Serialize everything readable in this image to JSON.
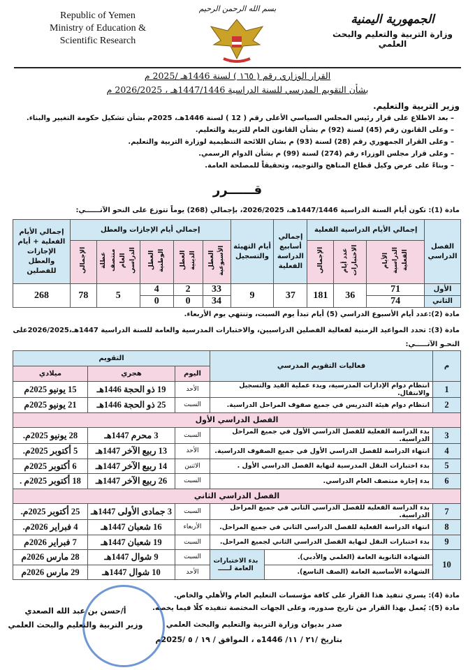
{
  "header": {
    "english_lines": [
      "Republic of Yemen",
      "Ministry of Education &",
      "Scientific Research"
    ],
    "basmala": "بسم الله الرحمن الرحيم",
    "arabic_line1": "الجمهورية اليمنية",
    "arabic_line2": "وزارة التربية والتعليم والبحث العلمي"
  },
  "decree": {
    "title": "القرار الوزاري رقم ( ١٦٥ ) لسنة 1446هـ /2025 م",
    "subtitle": "بشأن التقويم المدرسي للسنة الدراسية 1447/1446هـ ، 2026/2025 م",
    "addressee": "وزير التربية والتعليم.",
    "preamble": [
      "بعد الاطلاع على قرار رئيس المجلس السياسي الأعلى رقم ( 12 ) لسنة 1446هـ، 2025م بشأن تشكيل حكومة التغيير والبناء.",
      "وعلى القانون رقم (45) لسنة (92) م بشأن القانون العام للتربية والتعليم.",
      "وعلى القرار الجمهوري رقم (28) لسنة (93) م بشان اللائحة التنظيمية لوزارة التربية والتعليم.",
      "وعلى قرار مجلس الوزراء رقم (274) لسنة (99) م بشأن الدوام الرسمي.",
      "وبناءً على عرض وكيل قطاع المناهج والتوجيه، وتحقيقاً للمصلحة العامة."
    ],
    "resolved": "قــــــرر",
    "article1": "مادة (1): تكون أيام السنة الدراسية 1447/1446هـ، 2026/2025، بإجمالي (268) يوماً تتوزع على النحو الآتــــــي:",
    "article2": "مادة (2):عدد أيام الأسبوع الدراسي (5) أيام تبدأ يوم السبت، وتنتهي يوم الأربعاء.",
    "article3": "مادة (3): تحدد المواعيد الزمنية لفعالية الفصلين الدراسيين، والاختبارات المدرسية والعامة للسنة الدراسية 1447هـ،2026/2025على النحـو الآتـــــي:",
    "article4": "مادة (4): يسري تنفيذ هذا القرار على كافة مؤسسات التعليم العام والأهلي والخاص.",
    "article5": "مادة (5): يُعمل بهذا القرار من تاريخ صدوره، وعلى الجهات المختصة تنفيذه كلًا فيما يخصه.",
    "issued": "صدر بديوان وزارة التربية والتعليم والبحث العلمي",
    "date": "بتاريخ /٢١ / ١١/ 1446ه ، الموافق / ١٩ / ٥ /2025م",
    "signatory_name": "أ/حسن بن عبد الله الصعدي",
    "signatory_title": "وزير التربية والتعليم والبحث العلمي"
  },
  "days_table": {
    "headers": {
      "semester": "الفصل الدراسي",
      "actual_days_group": "إجمالي الأيام الدراسية الفعلية",
      "actual_days": "الأيام الدراسية الفعلية",
      "exam_days": "عدد أيام الاختبارات",
      "actual_total": "الإجمالي",
      "weeks": "إجمالي أسابيع الدراسة الفعلية",
      "prep_days": "أيام التهيئة والتسجيل",
      "holidays_group": "إجمالي أيام الإجازات والعطل",
      "weekly": "العطل الأسبوعية",
      "religious": "العطل الدينية",
      "national": "العطل الوطنية",
      "midyear": "عطلة منتصف العام الدراسي",
      "holidays_total": "الإجمالي",
      "grand_total": "إجمالي الأيام الفعلية + أيام الإجازات والعطل للفصلين"
    },
    "rows": [
      {
        "semester": "الأول",
        "actual_days": "71",
        "weekly": "33",
        "religious": "2",
        "national": "4"
      },
      {
        "semester": "الثاني",
        "actual_days": "74",
        "weekly": "34",
        "religious": "0",
        "national": "0"
      }
    ],
    "shared": {
      "exam_days": "36",
      "actual_total": "181",
      "weeks": "37",
      "prep_days": "9",
      "midyear": "5",
      "holidays_total": "78",
      "grand_total": "268"
    }
  },
  "calendar_table": {
    "headers": {
      "no": "م",
      "activity": "فعاليات التقويم المدرسي",
      "calendar": "التقويم",
      "day": "اليوم",
      "hijri": "هجري",
      "gregorian": "ميلادي"
    },
    "rows": [
      {
        "no": "1",
        "activity": "انتظام دوام الإدارات المدرسية، وبدء عملية القيد والتسجيل والانتقال.",
        "day": "الأحد",
        "hijri": "19 ذو الحجة 1446هـ",
        "gregorian": "15 يونيو 2025م"
      },
      {
        "no": "2",
        "activity": "انتظام دوام هيئة التدريس في جميع صفوف المراحل الدراسية.",
        "day": "السبت",
        "hijri": "25 ذو الحجة 1446هـ",
        "gregorian": "21 يونيو 2025م"
      },
      {
        "section": "الفصل الدراسي الأول"
      },
      {
        "no": "3",
        "activity": "بدء الدراسة الفعلية للفصل الدراسي الأول في جميع المراحل الدراسية.",
        "day": "السبت",
        "hijri": "3 محرم 1447هـ",
        "gregorian": "28 يونيو 2025م."
      },
      {
        "no": "4",
        "activity": "انتهاء الدراسة للفصل الدراسي الأول في جميع الصفوف الدراسية.",
        "day": "الأحد",
        "hijri": "13 ربيع الآخر 1447هـ",
        "gregorian": "5 أكتوبر 2025م."
      },
      {
        "no": "5",
        "activity": "بدء اختبارات النقل المدرسية لنهاية الفصل الدراسي الأول .",
        "day": "الاثنين",
        "hijri": "14 ربيع الآخر 1447هـ",
        "gregorian": "6 أكتوبر 2025م"
      },
      {
        "no": "6",
        "activity": "بدء إجازة منتصف العام الدراسي.",
        "day": "السبت",
        "hijri": "26 ربيع الآخر 1447هـ",
        "gregorian": "18 أكتوبر 2025م ."
      },
      {
        "section": "الفصل الدراسي الثاني"
      },
      {
        "no": "7",
        "activity": "بدء الدراسة الفعلية للفصل الدراسي الثاني في جميع المراحل الدراسية.",
        "day": "السبت",
        "hijri": "3 جمادى الأولى 1447هـ",
        "gregorian": "25 أكتوبر 2025م."
      },
      {
        "no": "8",
        "activity": "انتهاء الدراسة الفعلية للفصل الدراسي الثاني في جميع المراحل.",
        "day": "الأربعاء",
        "hijri": "16 شعبان 1447هـ",
        "gregorian": "4 فبراير 2026م."
      },
      {
        "no": "9",
        "activity": "بدء اختبارات النقل لنهاية الفصل الدراسي الثاني لجميع المراحل.",
        "day": "السبت",
        "hijri": "19 شعبان 1447هـ",
        "gregorian": "7 فبراير 2026م"
      }
    ],
    "row10": {
      "no": "10",
      "label": "بدء الاختبارات العامة لـــــ",
      "items": [
        {
          "activity": "الشهادة الثانوية العامة (العلمي والأدبي).",
          "day": "السبت",
          "hijri": "9 شوال 1447هـ",
          "gregorian": "28 مارس 2026م"
        },
        {
          "activity": "الشهادة الأساسية العامة (الصف التاسع).",
          "day": "الأحد",
          "hijri": "10 شوال 1447هـ",
          "gregorian": "29 مارس 2026م"
        }
      ]
    }
  },
  "colors": {
    "header_blue": "#cfe8f4",
    "header_pink": "#f7d6e4",
    "stamp_blue": "#3f74c4"
  }
}
